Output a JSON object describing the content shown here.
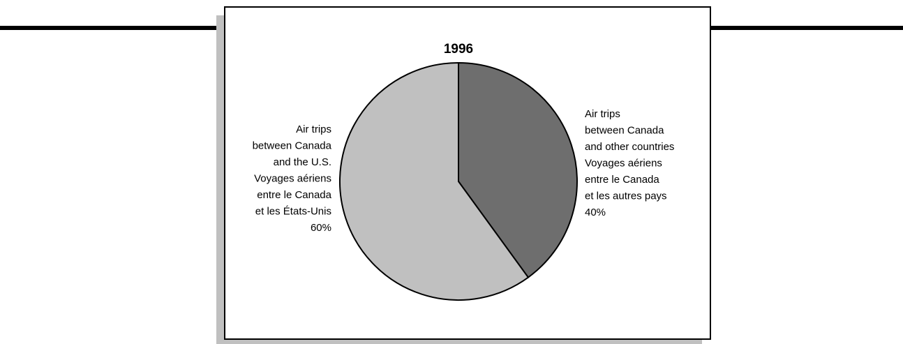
{
  "chart_data": {
    "type": "pie",
    "title": "1996",
    "labels": [
      [
        "Air trips",
        "between Canada",
        "and other countries",
        "Voyages aériens",
        "entre le Canada",
        "et  les autres pays"
      ],
      [
        "Air trips",
        "between Canada",
        "and the U.S.",
        "Voyages aériens",
        "entre le Canada",
        "et les États-Unis"
      ]
    ],
    "values": [
      40,
      60
    ],
    "value_labels": [
      "40%",
      "60%"
    ],
    "colors": [
      "#6e6e6e",
      "#c0c0c0"
    ]
  }
}
